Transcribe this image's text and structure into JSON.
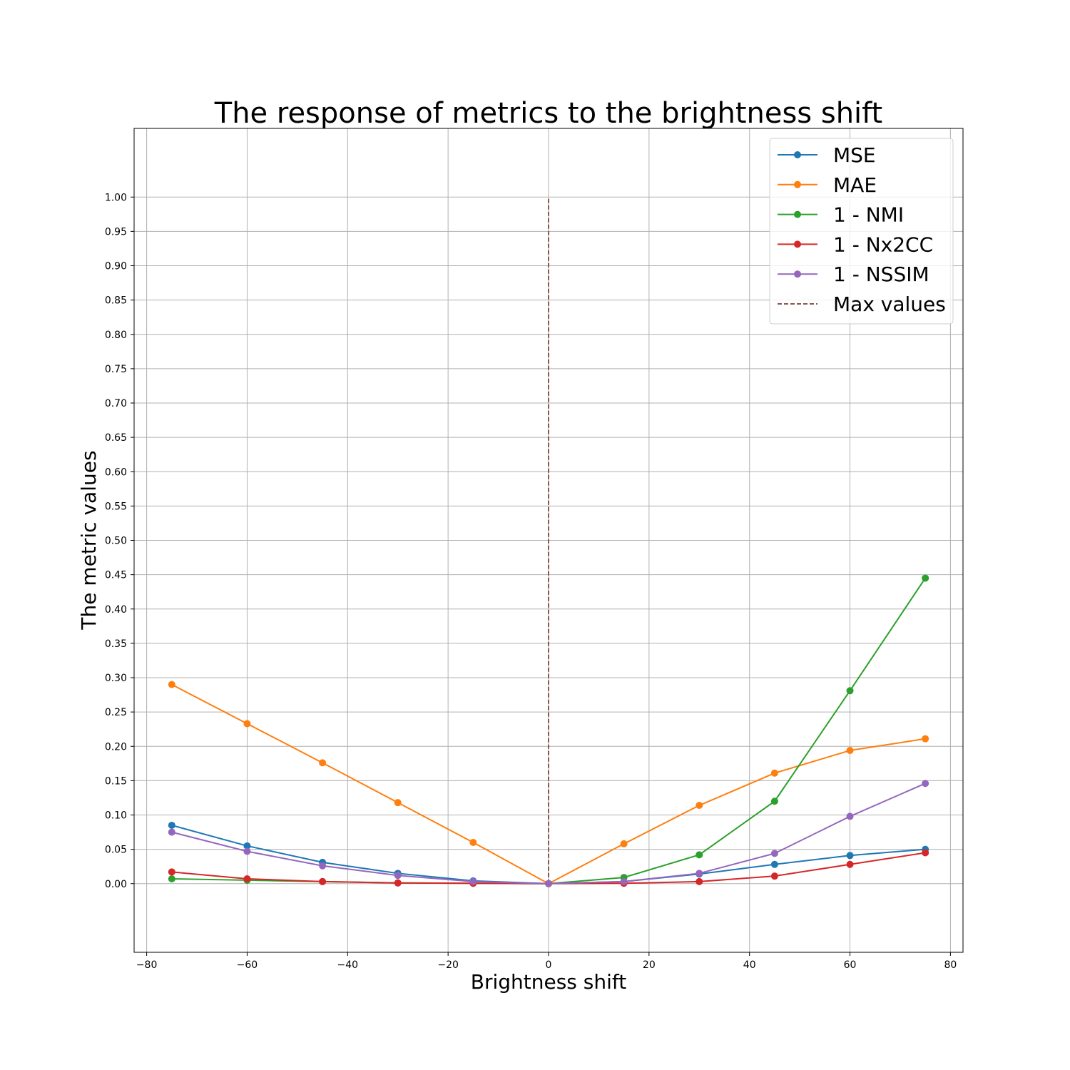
{
  "chart_data": {
    "type": "line",
    "title": "The response of metrics to the brightness shift",
    "xlabel": "Brightness shift",
    "ylabel": "The metric values",
    "xlim": [
      -82.5,
      82.5
    ],
    "ylim": [
      -0.1,
      1.1
    ],
    "grid": true,
    "legend_position": "top-right",
    "x_ticks": [
      -80,
      -60,
      -40,
      -20,
      0,
      20,
      40,
      60,
      80
    ],
    "x_tick_labels": [
      "−80",
      "−60",
      "−40",
      "−20",
      "0",
      "20",
      "40",
      "60",
      "80"
    ],
    "y_ticks": [
      0.0,
      0.05,
      0.1,
      0.15,
      0.2,
      0.25,
      0.3,
      0.35,
      0.4,
      0.45,
      0.5,
      0.55,
      0.6,
      0.65,
      0.7,
      0.75,
      0.8,
      0.85,
      0.9,
      0.95,
      1.0
    ],
    "y_tick_labels": [
      "0.00",
      "0.05",
      "0.10",
      "0.15",
      "0.20",
      "0.25",
      "0.30",
      "0.35",
      "0.40",
      "0.45",
      "0.50",
      "0.55",
      "0.60",
      "0.65",
      "0.70",
      "0.75",
      "0.80",
      "0.85",
      "0.90",
      "0.95",
      "1.00"
    ],
    "x": [
      -75,
      -60,
      -45,
      -30,
      -15,
      0,
      15,
      30,
      45,
      60,
      75
    ],
    "series": [
      {
        "name": "MSE",
        "color": "#1f77b4",
        "values": [
          0.085,
          0.055,
          0.031,
          0.015,
          0.004,
          0.0,
          0.003,
          0.014,
          0.028,
          0.041,
          0.05
        ]
      },
      {
        "name": "MAE",
        "color": "#ff7f0e",
        "values": [
          0.29,
          0.233,
          0.176,
          0.118,
          0.06,
          0.0,
          0.058,
          0.114,
          0.161,
          0.194,
          0.211
        ]
      },
      {
        "name": "1 - NMI",
        "color": "#2ca02c",
        "values": [
          0.007,
          0.005,
          0.003,
          0.001,
          0.0005,
          0.0,
          0.009,
          0.042,
          0.12,
          0.281,
          0.445
        ]
      },
      {
        "name": "1 - Nx2CC",
        "color": "#d62728",
        "values": [
          0.017,
          0.007,
          0.003,
          0.001,
          0.0005,
          0.0,
          0.0005,
          0.003,
          0.011,
          0.028,
          0.045
        ]
      },
      {
        "name": "1 - NSSIM",
        "color": "#9467bd",
        "values": [
          0.075,
          0.047,
          0.026,
          0.012,
          0.003,
          0.0,
          0.003,
          0.015,
          0.044,
          0.098,
          0.146
        ]
      }
    ],
    "reference_line": {
      "name": "Max values",
      "color": "#8c564b",
      "x": 0,
      "y_range": [
        0.0,
        1.0
      ],
      "style": "dashed"
    }
  }
}
